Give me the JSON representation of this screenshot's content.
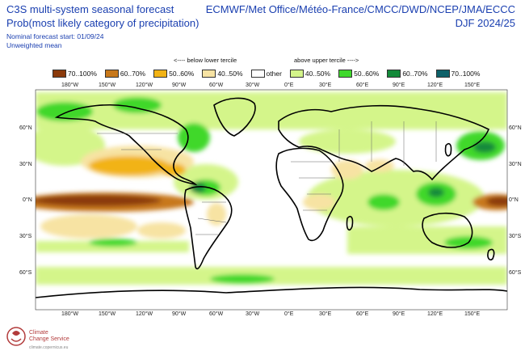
{
  "header": {
    "title": "C3S multi-system seasonal forecast",
    "subtitle": "Prob(most likely category of precipitation)",
    "start": "Nominal forecast start: 01/09/24",
    "mean": "Unweighted mean",
    "centres": "ECMWF/Met Office/Météo-France/CMCC/DWD/NCEP/JMA/ECCC",
    "season": "DJF 2024/25"
  },
  "legend": {
    "below_label": "<---- below lower tercile",
    "above_label": "above upper tercile ---->",
    "items": [
      {
        "label": "70..100%",
        "color": "#8b3a0b"
      },
      {
        "label": "60..70%",
        "color": "#c8781a"
      },
      {
        "label": "50..60%",
        "color": "#f2b315"
      },
      {
        "label": "40..50%",
        "color": "#f7e3a3"
      },
      {
        "label": "other",
        "color": "#ffffff"
      },
      {
        "label": "40..50%",
        "color": "#d4f58a"
      },
      {
        "label": "50..60%",
        "color": "#3fd82c"
      },
      {
        "label": "60..70%",
        "color": "#138a3a"
      },
      {
        "label": "70..100%",
        "color": "#0e6169"
      }
    ]
  },
  "axes": {
    "lon_ticks": [
      "180°W",
      "150°W",
      "120°W",
      "90°W",
      "60°W",
      "30°W",
      "0°E",
      "30°E",
      "60°E",
      "90°E",
      "120°E",
      "150°E"
    ],
    "lat_ticks": [
      "60°N",
      "30°N",
      "0°N",
      "30°S",
      "60°S"
    ]
  },
  "logo": {
    "line1": "Climate",
    "line2": "Change Service",
    "url": "climate.copernicus.eu"
  }
}
